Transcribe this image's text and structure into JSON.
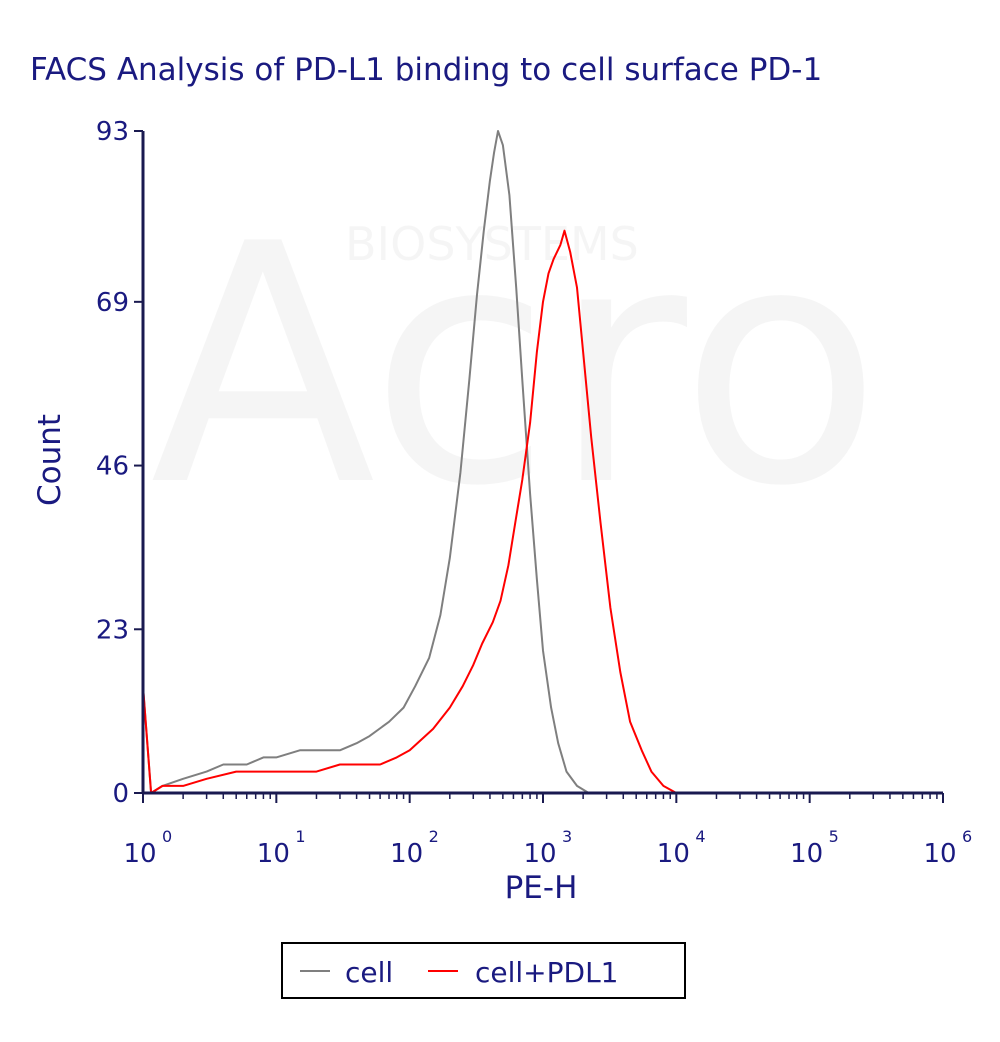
{
  "chart_data": {
    "type": "line",
    "title": "FACS Analysis of PD-L1 binding to cell surface PD-1",
    "xlabel": "PE-H",
    "ylabel": "Count",
    "x_scale": "log",
    "xlim": [
      1,
      1000000
    ],
    "ylim": [
      0,
      93
    ],
    "y_ticks": [
      0,
      23,
      46,
      69,
      93
    ],
    "x_ticks": [
      {
        "base": "10",
        "exp": "0",
        "value": 1
      },
      {
        "base": "10",
        "exp": "1",
        "value": 10
      },
      {
        "base": "10",
        "exp": "2",
        "value": 100
      },
      {
        "base": "10",
        "exp": "3",
        "value": 1000
      },
      {
        "base": "10",
        "exp": "4",
        "value": 10000
      },
      {
        "base": "10",
        "exp": "5",
        "value": 100000
      },
      {
        "base": "10",
        "exp": "6",
        "value": 1000000
      }
    ],
    "legend_position": "bottom",
    "series": [
      {
        "name": "cell",
        "color": "#7f7f7f",
        "points": [
          [
            1,
            15
          ],
          [
            1.15,
            0
          ],
          [
            1.4,
            1
          ],
          [
            2,
            2
          ],
          [
            3,
            3
          ],
          [
            4,
            4
          ],
          [
            6,
            4
          ],
          [
            8,
            5
          ],
          [
            10,
            5
          ],
          [
            15,
            6
          ],
          [
            20,
            6
          ],
          [
            30,
            6
          ],
          [
            40,
            7
          ],
          [
            50,
            8
          ],
          [
            70,
            10
          ],
          [
            90,
            12
          ],
          [
            110,
            15
          ],
          [
            140,
            19
          ],
          [
            170,
            25
          ],
          [
            200,
            33
          ],
          [
            240,
            45
          ],
          [
            280,
            58
          ],
          [
            320,
            70
          ],
          [
            360,
            79
          ],
          [
            400,
            86
          ],
          [
            430,
            90
          ],
          [
            460,
            93
          ],
          [
            500,
            91
          ],
          [
            560,
            84
          ],
          [
            630,
            71
          ],
          [
            700,
            58
          ],
          [
            800,
            42
          ],
          [
            900,
            30
          ],
          [
            1000,
            20
          ],
          [
            1150,
            12
          ],
          [
            1300,
            7
          ],
          [
            1500,
            3
          ],
          [
            1800,
            1
          ],
          [
            2200,
            0
          ],
          [
            2600,
            0
          ]
        ]
      },
      {
        "name": "cell+PDL1",
        "color": "#ff0000",
        "points": [
          [
            1,
            15
          ],
          [
            1.15,
            0
          ],
          [
            1.4,
            1
          ],
          [
            2,
            1
          ],
          [
            3,
            2
          ],
          [
            5,
            3
          ],
          [
            8,
            3
          ],
          [
            10,
            3
          ],
          [
            15,
            3
          ],
          [
            20,
            3
          ],
          [
            30,
            4
          ],
          [
            40,
            4
          ],
          [
            60,
            4
          ],
          [
            80,
            5
          ],
          [
            100,
            6
          ],
          [
            150,
            9
          ],
          [
            200,
            12
          ],
          [
            250,
            15
          ],
          [
            300,
            18
          ],
          [
            350,
            21
          ],
          [
            420,
            24
          ],
          [
            480,
            27
          ],
          [
            550,
            32
          ],
          [
            620,
            38
          ],
          [
            700,
            44
          ],
          [
            800,
            52
          ],
          [
            900,
            62
          ],
          [
            1000,
            69
          ],
          [
            1100,
            73
          ],
          [
            1200,
            75
          ],
          [
            1350,
            77
          ],
          [
            1450,
            79
          ],
          [
            1600,
            76
          ],
          [
            1800,
            71
          ],
          [
            2000,
            62
          ],
          [
            2300,
            50
          ],
          [
            2700,
            38
          ],
          [
            3200,
            26
          ],
          [
            3800,
            17
          ],
          [
            4500,
            10
          ],
          [
            5500,
            6
          ],
          [
            6500,
            3
          ],
          [
            8000,
            1
          ],
          [
            10000,
            0
          ],
          [
            13000,
            0
          ]
        ]
      }
    ]
  },
  "watermark": {
    "brand": "Acro",
    "tagline": "BIOSYSTEMS"
  }
}
